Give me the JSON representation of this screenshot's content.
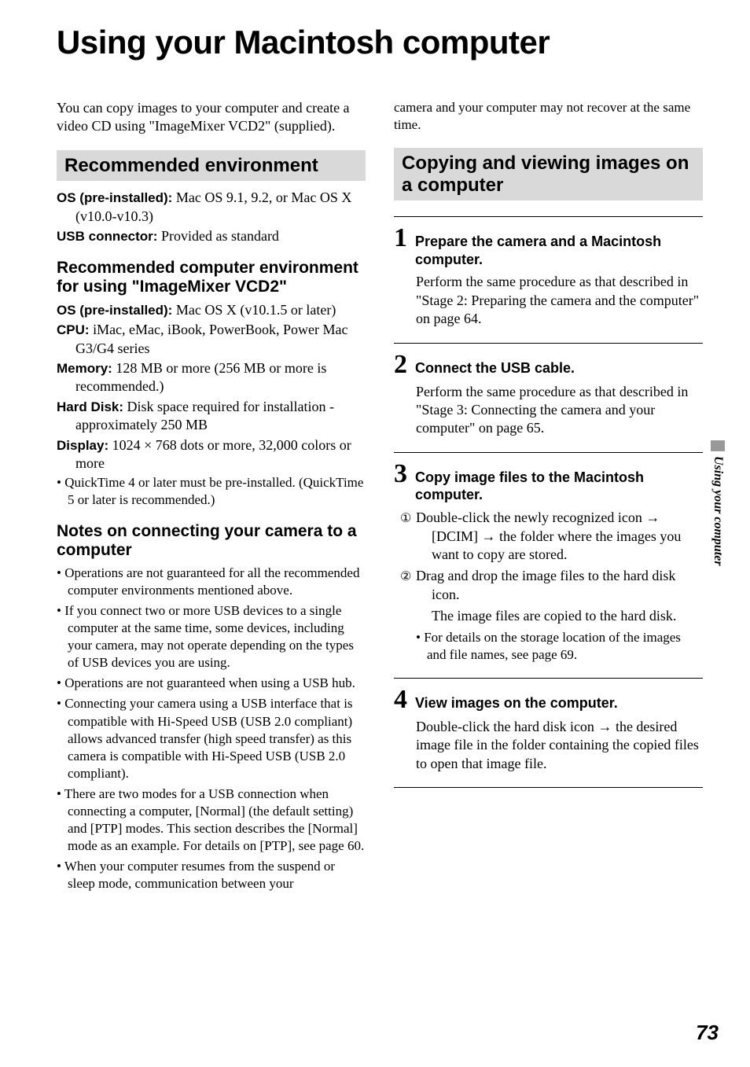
{
  "page": {
    "title": "Using your Macintosh computer",
    "side_tab": "Using your computer",
    "number": "73"
  },
  "left": {
    "intro": "You can copy images to your computer and create a video CD using \"ImageMixer VCD2\" (supplied).",
    "section1": {
      "heading": "Recommended environment",
      "os_label": "OS (pre-installed):",
      "os_value": " Mac OS 9.1, 9.2, or Mac OS X (v10.0-v10.3)",
      "usb_label": "USB connector:",
      "usb_value": " Provided as standard"
    },
    "section2": {
      "heading": "Recommended computer environment for using \"ImageMixer VCD2\"",
      "os_label": "OS (pre-installed):",
      "os_value": " Mac OS X (v10.1.5 or later)",
      "cpu_label": "CPU:",
      "cpu_value": " iMac, eMac, iBook, PowerBook, Power Mac G3/G4 series",
      "mem_label": "Memory:",
      "mem_value": " 128 MB or more (256 MB or more is recommended.)",
      "hd_label": "Hard Disk:",
      "hd_value": " Disk space required for installation - approximately 250 MB",
      "disp_label": "Display:",
      "disp_value": " 1024 × 768 dots or more, 32,000 colors or more",
      "bullet": "QuickTime 4 or later must be pre-installed. (QuickTime 5 or later is recommended.)"
    },
    "section3": {
      "heading": "Notes on connecting your camera to a computer",
      "bullets": [
        "Operations are not guaranteed for all the recommended computer environments mentioned above.",
        "If you connect two or more USB devices to a single computer at the same time, some devices, including your camera, may not operate depending on the types of USB devices you are using.",
        "Operations are not guaranteed when using a USB hub.",
        "Connecting your camera using a USB interface that is compatible with Hi-Speed USB (USB 2.0 compliant) allows advanced transfer (high speed transfer) as this camera is compatible with Hi-Speed USB (USB 2.0 compliant).",
        "There are two modes for a USB connection when connecting a computer, [Normal] (the default setting) and [PTP] modes. This section describes the [Normal] mode as an example. For details on [PTP], see page 60.",
        "When your computer resumes from the suspend or sleep mode, communication between your"
      ]
    }
  },
  "right": {
    "continuation": "camera and your computer may not recover at the same time.",
    "section_heading": "Copying and viewing images on a computer",
    "steps": [
      {
        "num": "1",
        "title": "Prepare the camera and a Macintosh computer.",
        "body": "Perform the same procedure as that described in \"Stage 2: Preparing the camera and the computer\" on page 64."
      },
      {
        "num": "2",
        "title": "Connect the USB cable.",
        "body": "Perform the same procedure as that described in \"Stage 3: Connecting the camera and your computer\" on page 65."
      },
      {
        "num": "3",
        "title": "Copy image files to the Macintosh computer.",
        "sub1_pre": "Double-click the newly recognized icon ",
        "sub1_mid1": " [DCIM] ",
        "sub1_post": " the folder where the images you want to copy are stored.",
        "sub2_a": "Drag and drop the image files to the hard disk icon.",
        "sub2_b": "The image files are copied to the hard disk.",
        "bullet": "For details on the storage location of the images and file names, see page 69."
      },
      {
        "num": "4",
        "title": "View images on the computer.",
        "body_pre": "Double-click the hard disk icon ",
        "body_post": " the desired image file in the folder containing the copied files to open that image file."
      }
    ]
  }
}
